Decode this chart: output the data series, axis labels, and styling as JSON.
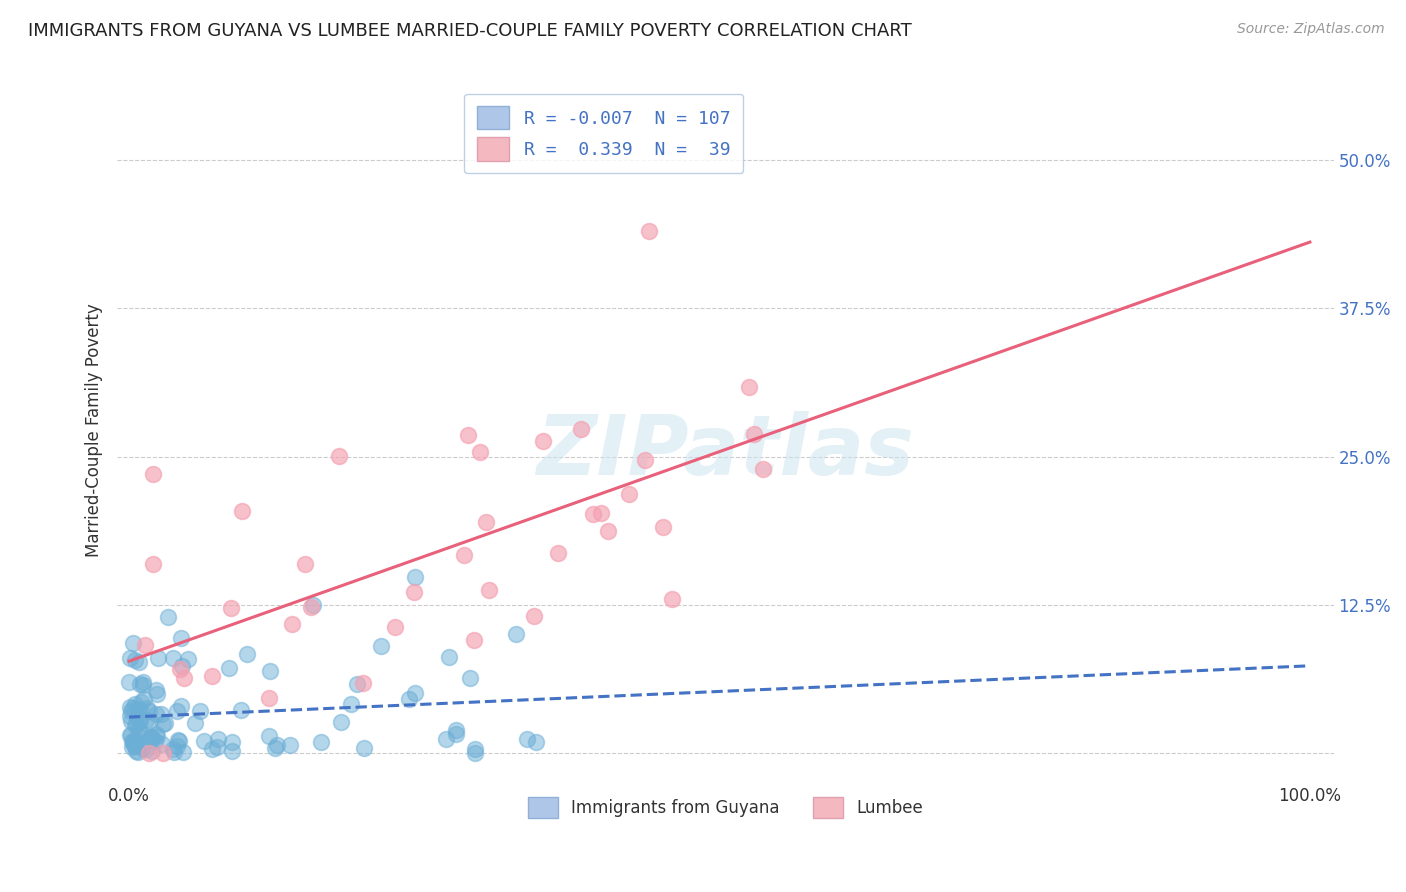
{
  "title": "IMMIGRANTS FROM GUYANA VS LUMBEE MARRIED-COUPLE FAMILY POVERTY CORRELATION CHART",
  "source": "Source: ZipAtlas.com",
  "ylabel": "Married-Couple Family Poverty",
  "ytick_labels": [
    "",
    "12.5%",
    "25.0%",
    "37.5%",
    "50.0%"
  ],
  "ytick_values": [
    0.0,
    0.125,
    0.25,
    0.375,
    0.5
  ],
  "guyana_color": "#6baed6",
  "lumbee_color": "#f4a0b0",
  "guyana_line_color": "#4472c4",
  "lumbee_line_color": "#e8607a",
  "watermark_text": "ZIPatlas",
  "guyana_R": -0.007,
  "guyana_N": 107,
  "lumbee_R": 0.339,
  "lumbee_N": 39,
  "background_color": "#ffffff",
  "grid_color": "#cccccc"
}
